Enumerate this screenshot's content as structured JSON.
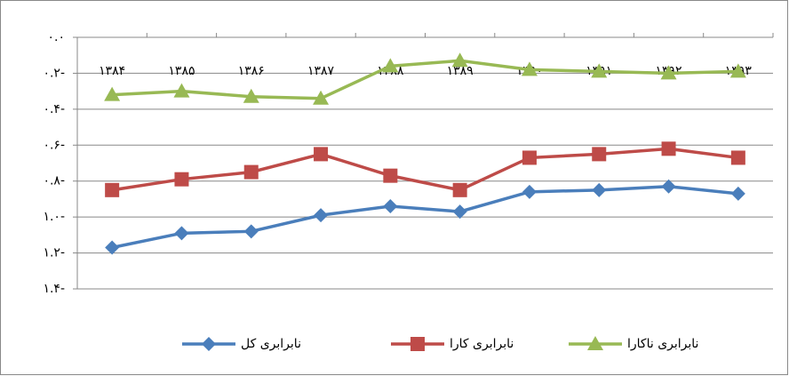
{
  "chart_data": {
    "type": "line",
    "categories": [
      "۱۳۸۴",
      "۱۳۸۵",
      "۱۳۸۶",
      "۱۳۸۷",
      "۱۳۸۸",
      "۱۳۸۹",
      "۱۳۹۰",
      "۱۳۹۱",
      "۱۳۹۲",
      "۱۳۹۳"
    ],
    "series": [
      {
        "name": "نابرابری کل",
        "color": "#4a7ebb",
        "marker": "diamond",
        "values": [
          -1.17,
          -1.09,
          -1.08,
          -0.99,
          -0.94,
          -0.97,
          -0.86,
          -0.85,
          -0.83,
          -0.87
        ]
      },
      {
        "name": "نابرابری کارا",
        "color": "#be4b48",
        "marker": "square",
        "values": [
          -0.85,
          -0.79,
          -0.75,
          -0.65,
          -0.77,
          -0.85,
          -0.67,
          -0.65,
          -0.62,
          -0.67
        ]
      },
      {
        "name": "نابرابری ناکارا",
        "color": "#98b954",
        "marker": "triangle",
        "values": [
          -0.32,
          -0.3,
          -0.33,
          -0.34,
          -0.16,
          -0.13,
          -0.18,
          -0.19,
          -0.2,
          -0.19
        ]
      }
    ],
    "ylim": [
      0,
      -1.4
    ],
    "yticks": [
      {
        "value": 0,
        "label": "۰.۰"
      },
      {
        "value": -0.2,
        "label": "۰.۲-"
      },
      {
        "value": -0.4,
        "label": "۰.۴-"
      },
      {
        "value": -0.6,
        "label": "۰.۶-"
      },
      {
        "value": -0.8,
        "label": "۰.۸-"
      },
      {
        "value": -1.0,
        "label": "۱.۰-"
      },
      {
        "value": -1.2,
        "label": "۱.۲-"
      },
      {
        "value": -1.4,
        "label": "۱.۴-"
      }
    ],
    "grid": true
  }
}
